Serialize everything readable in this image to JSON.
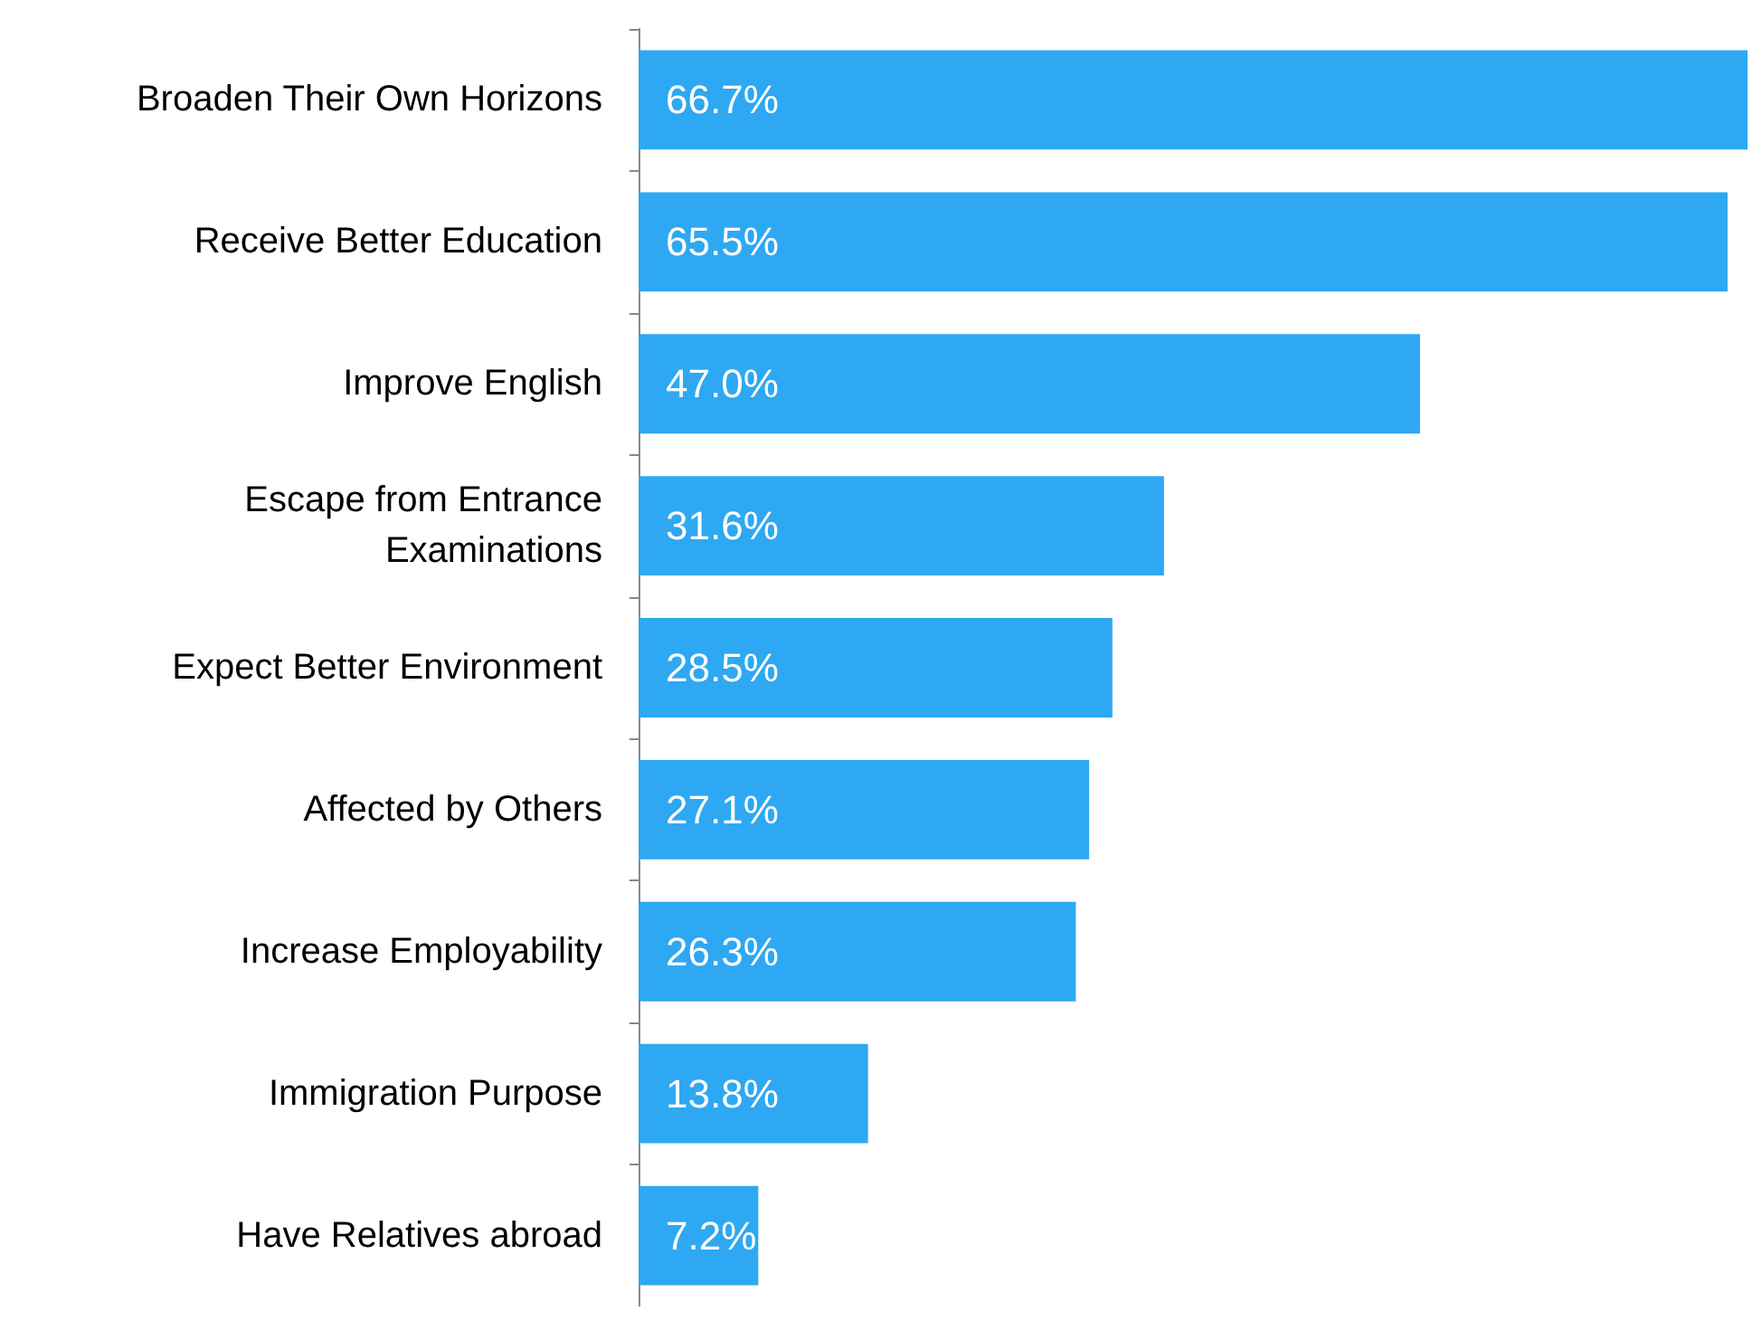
{
  "chart_data": {
    "type": "bar",
    "orientation": "horizontal",
    "categories": [
      "Broaden Their Own Horizons",
      "Receive Better Education",
      "Improve English",
      "Escape from Entrance\nExaminations",
      "Expect Better Environment",
      "Affected by Others",
      "Increase Employability",
      "Immigration Purpose",
      "Have Relatives abroad"
    ],
    "values": [
      66.7,
      65.5,
      47.0,
      31.6,
      28.5,
      27.1,
      26.3,
      13.8,
      7.2
    ],
    "value_labels": [
      "66.7%",
      "65.5%",
      "47.0%",
      "31.6%",
      "28.5%",
      "27.1%",
      "26.3%",
      "13.8%",
      "7.2%"
    ],
    "color": "#2ea8f2"
  }
}
